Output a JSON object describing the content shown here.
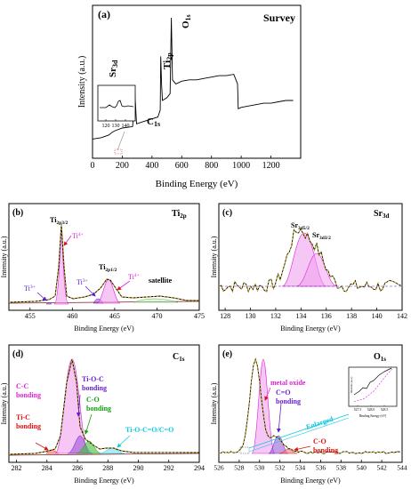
{
  "chart_data": [
    {
      "panel": "(a)",
      "type": "line",
      "title": "Survey",
      "xlabel": "Binding Energy (eV)",
      "ylabel": "Intensity (a.u.)",
      "xlim": [
        0,
        1400
      ],
      "xticks": [
        "0",
        "200",
        "400",
        "600",
        "800",
        "1000",
        "1200"
      ],
      "peaks": [
        {
          "label": "Sr",
          "sub": "3d",
          "x": 133
        },
        {
          "label": "C",
          "sub": "1s",
          "x": 284
        },
        {
          "label": "Ti",
          "sub": "2p",
          "x": 459
        },
        {
          "label": "O",
          "sub": "1s",
          "x": 530
        }
      ],
      "series": [
        {
          "values": [
            [
              0,
              0.12
            ],
            [
              60,
              0.13
            ],
            [
              110,
              0.15
            ],
            [
              133,
              0.17
            ],
            [
              150,
              0.18
            ],
            [
              200,
              0.2
            ],
            [
              270,
              0.21
            ],
            [
              284,
              0.47
            ],
            [
              296,
              0.23
            ],
            [
              350,
              0.25
            ],
            [
              440,
              0.28
            ],
            [
              455,
              0.33
            ],
            [
              459,
              0.72
            ],
            [
              464,
              0.52
            ],
            [
              470,
              0.4
            ],
            [
              500,
              0.42
            ],
            [
              522,
              0.45
            ],
            [
              530,
              1.0
            ],
            [
              538,
              0.55
            ],
            [
              560,
              0.52
            ],
            [
              600,
              0.54
            ],
            [
              650,
              0.55
            ],
            [
              700,
              0.55
            ],
            [
              750,
              0.56
            ],
            [
              800,
              0.57
            ],
            [
              850,
              0.58
            ],
            [
              900,
              0.58
            ],
            [
              950,
              0.59
            ],
            [
              975,
              0.52
            ],
            [
              980,
              0.34
            ],
            [
              1000,
              0.35
            ],
            [
              1050,
              0.36
            ],
            [
              1100,
              0.37
            ],
            [
              1150,
              0.38
            ],
            [
              1200,
              0.38
            ],
            [
              1250,
              0.39
            ],
            [
              1300,
              0.4
            ],
            [
              1350,
              0.4
            ]
          ]
        }
      ],
      "inset": {
        "xticks": [
          "120",
          "130",
          "140"
        ]
      }
    },
    {
      "panel": "(b)",
      "type": "line",
      "title": "Ti",
      "title_sub": "2p",
      "xlabel": "Binding Energy (eV)",
      "ylabel": "Intensity (a.u.)",
      "xlim": [
        452.5,
        475
      ],
      "xticks": [
        "455",
        "460",
        "465",
        "470",
        "475"
      ],
      "labels": [
        {
          "text": "Ti",
          "sub": "2p3/2",
          "x": 458.5
        },
        {
          "text": "Ti",
          "sup": "4+",
          "x": 460.8
        },
        {
          "text": "Ti",
          "sub": "2p1/2",
          "x": 464.3
        },
        {
          "text": "Ti",
          "sup": "3+",
          "x": 455.3
        },
        {
          "text": "Ti",
          "sup": "3+",
          "x": 462.3
        },
        {
          "text": "Ti",
          "sup": "4+",
          "x": 466.6
        },
        {
          "text": "satellite",
          "x": 472.0
        }
      ]
    },
    {
      "panel": "(c)",
      "type": "line",
      "title": "Sr",
      "title_sub": "3d",
      "xlabel": "Binding Energy (eV)",
      "ylabel": "Intensity (a.u.)",
      "xlim": [
        127.5,
        142
      ],
      "xticks": [
        "128",
        "130",
        "132",
        "134",
        "136",
        "138",
        "140",
        "142"
      ],
      "labels": [
        {
          "text": "Sr",
          "sub": "3d5/2",
          "x": 133.7
        },
        {
          "text": "Sr",
          "sub": "3d3/2",
          "x": 135.2
        }
      ]
    },
    {
      "panel": "(d)",
      "type": "line",
      "title": "C",
      "title_sub": "1s",
      "xlabel": "Binding Energy (eV)",
      "ylabel": "Intensity (a.u.)",
      "xlim": [
        281.5,
        294
      ],
      "xticks": [
        "282",
        "284",
        "286",
        "288",
        "290",
        "292",
        "294"
      ],
      "labels": [
        {
          "text": "C-C bonding",
          "lines": [
            "C-C",
            "bonding"
          ],
          "color": "#e020d8"
        },
        {
          "text": "Ti-C bonding",
          "lines": [
            "Ti-C",
            "bonding"
          ],
          "color": "#e01010"
        },
        {
          "text": "Ti-O-C bonding",
          "lines": [
            "Ti-O-C",
            "bonding"
          ],
          "color": "#6a1fd0"
        },
        {
          "text": "C-O bonding",
          "lines": [
            "C-O",
            "bonding"
          ],
          "color": "#10a010"
        },
        {
          "text": "Ti-O-C=O/C=O",
          "lines": [
            "Ti-O-C=O/C=O"
          ],
          "color": "#10c8e0"
        }
      ]
    },
    {
      "panel": "(e)",
      "type": "line",
      "title": "O",
      "title_sub": "1s",
      "xlabel": "Binding Energy (eV)",
      "ylabel": "Intensity (a.u.)",
      "xlim": [
        526,
        544
      ],
      "xticks": [
        "526",
        "528",
        "530",
        "532",
        "534",
        "536",
        "538",
        "540",
        "542",
        "544"
      ],
      "labels": [
        {
          "text": "metal oxide",
          "lines": [
            "metal oxide"
          ],
          "color": "#e020d8"
        },
        {
          "text": "C=O bonding",
          "lines": [
            "C=O",
            "bonding"
          ],
          "color": "#6a1fd0"
        },
        {
          "text": "C-O bonding",
          "lines": [
            "C-O",
            "bonding"
          ],
          "color": "#e01010"
        },
        {
          "text": "Enlarged",
          "lines": [
            "Enlarged"
          ],
          "color": "#10c8e0"
        }
      ],
      "inset": {
        "xlabel": "Binding Energy (eV)",
        "ylabel": "Intensity (a.u.)",
        "xticks": [
          "527.5",
          "528.0",
          "528.5"
        ]
      }
    }
  ]
}
